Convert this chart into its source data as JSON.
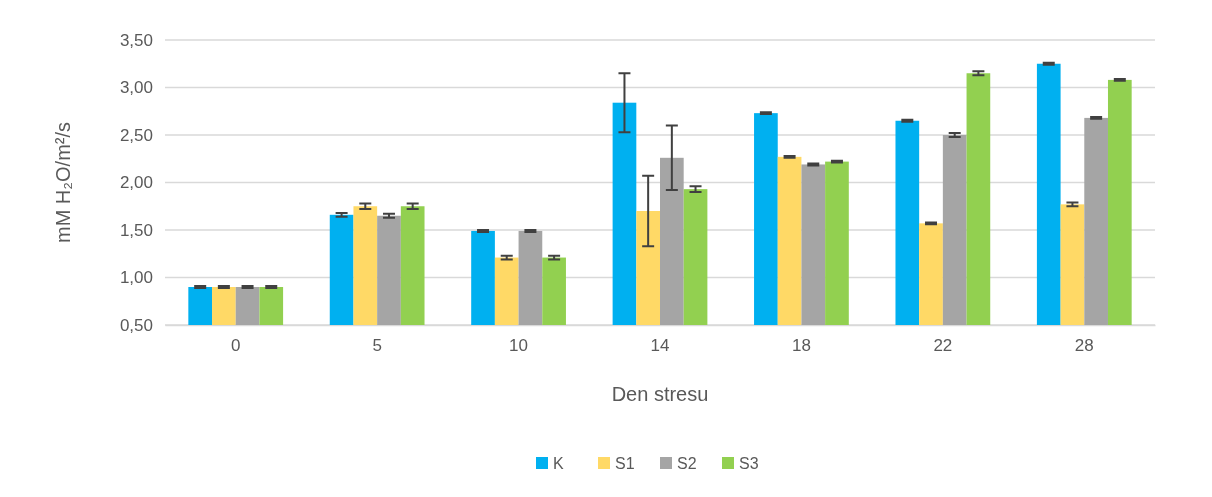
{
  "chart_data": {
    "type": "bar",
    "xlabel": "Den stresu",
    "ylabel": "mM H₂O/m²/s",
    "categories": [
      "0",
      "5",
      "10",
      "14",
      "18",
      "22",
      "28"
    ],
    "series": [
      {
        "name": "K",
        "color": "#00b0f0",
        "values": [
          0.9,
          1.66,
          1.49,
          2.84,
          2.73,
          2.65,
          3.25
        ],
        "errors": [
          0.01,
          0.02,
          0.01,
          0.31,
          0.01,
          0.01,
          0.01
        ]
      },
      {
        "name": "S1",
        "color": "#ffd966",
        "values": [
          0.9,
          1.75,
          1.21,
          1.7,
          2.27,
          1.57,
          1.77
        ],
        "errors": [
          0.01,
          0.03,
          0.02,
          0.37,
          0.01,
          0.01,
          0.02
        ]
      },
      {
        "name": "S2",
        "color": "#a5a5a5",
        "values": [
          0.9,
          1.65,
          1.49,
          2.26,
          2.19,
          2.5,
          2.68
        ],
        "errors": [
          0.01,
          0.02,
          0.01,
          0.34,
          0.01,
          0.02,
          0.01
        ]
      },
      {
        "name": "S3",
        "color": "#92d050",
        "values": [
          0.9,
          1.75,
          1.21,
          1.93,
          2.22,
          3.15,
          3.08
        ],
        "errors": [
          0.01,
          0.03,
          0.02,
          0.03,
          0.01,
          0.02,
          0.01
        ]
      }
    ],
    "ylim": [
      0.5,
      3.5
    ],
    "yticks": [
      {
        "value": 0.5,
        "label": "0,50"
      },
      {
        "value": 1,
        "label": "1,00"
      },
      {
        "value": 1.5,
        "label": "1,50"
      },
      {
        "value": 2,
        "label": "2,00"
      },
      {
        "value": 2.5,
        "label": "2,50"
      },
      {
        "value": 3,
        "label": "3,00"
      },
      {
        "value": 3.5,
        "label": "3,50"
      }
    ],
    "grid": "y",
    "legend": "bottom"
  }
}
